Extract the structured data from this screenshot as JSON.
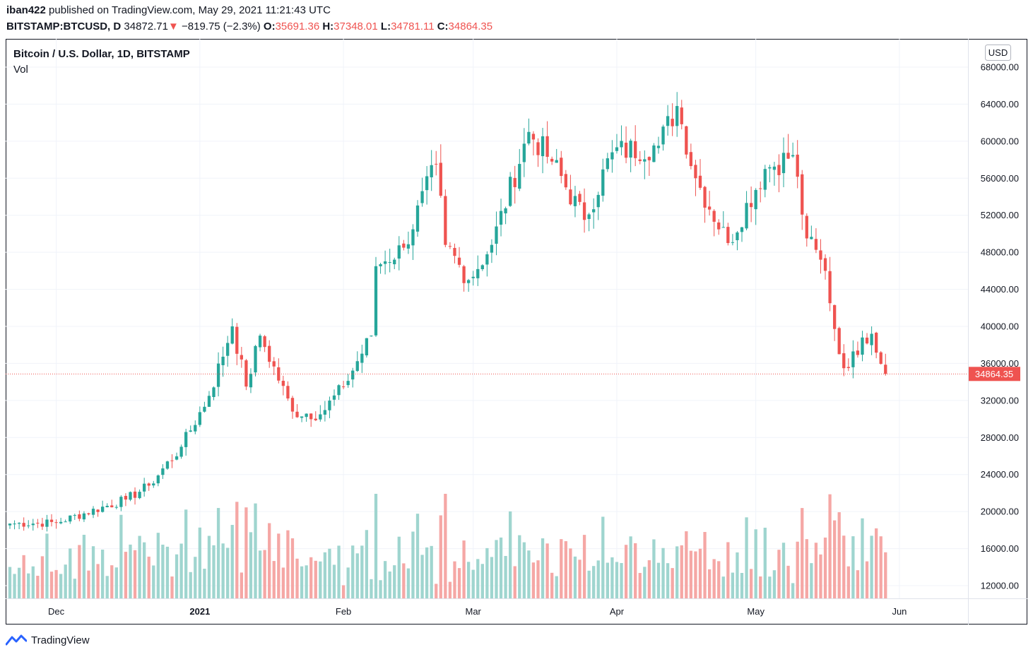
{
  "header": {
    "user": "iban422",
    "published_text": "published on TradingView.com, May 29, 2021 11:21:43 UTC",
    "symbol": "BITSTAMP:BTCUSD, D",
    "last": "34872.71",
    "change_arrow": "▼",
    "change": "−819.75 (−2.3%)",
    "o_label": "O:",
    "o": "35691.36",
    "h_label": "H:",
    "h": "37348.01",
    "l_label": "L:",
    "l": "34781.11",
    "c_label": "C:",
    "c": "34864.35"
  },
  "legend": {
    "series_title": "Bitcoin / U.S. Dollar, 1D, BITSTAMP",
    "volume_label": "Vol"
  },
  "currency_badge": "USD",
  "price_tag": "34864.35",
  "footer": {
    "brand": "TradingView"
  },
  "colors": {
    "up": "#26a69a",
    "down": "#ef5350",
    "up_vol": "#9fd5cf",
    "down_vol": "#f5a7a5"
  },
  "chart_data": {
    "type": "candlestick",
    "title": "Bitcoin / U.S. Dollar, 1D, BITSTAMP",
    "ylim": [
      11000,
      69000
    ],
    "y_ticks": [
      12000,
      16000,
      20000,
      24000,
      28000,
      32000,
      36000,
      40000,
      44000,
      48000,
      52000,
      56000,
      60000,
      64000,
      68000
    ],
    "x_tick_labels": [
      "Dec",
      "2021",
      "Feb",
      "Mar",
      "Apr",
      "May",
      "Jun"
    ],
    "current_price": 34864.35,
    "anchors": [
      {
        "date": "2020-11-21",
        "close": 18700
      },
      {
        "date": "2020-12-01",
        "close": 18800
      },
      {
        "date": "2020-12-16",
        "close": 21300
      },
      {
        "date": "2020-12-21",
        "close": 22800
      },
      {
        "date": "2020-12-28",
        "close": 27000
      },
      {
        "date": "2021-01-03",
        "close": 32500
      },
      {
        "date": "2021-01-08",
        "close": 40000
      },
      {
        "date": "2021-01-11",
        "close": 33500
      },
      {
        "date": "2021-01-14",
        "close": 39000
      },
      {
        "date": "2021-01-21",
        "close": 30800
      },
      {
        "date": "2021-01-27",
        "close": 30500
      },
      {
        "date": "2021-02-01",
        "close": 33500
      },
      {
        "date": "2021-02-07",
        "close": 39000
      },
      {
        "date": "2021-02-08",
        "close": 46500
      },
      {
        "date": "2021-02-14",
        "close": 48500
      },
      {
        "date": "2021-02-21",
        "close": 57500
      },
      {
        "date": "2021-02-23",
        "close": 48800
      },
      {
        "date": "2021-02-28",
        "close": 45000
      },
      {
        "date": "2021-03-05",
        "close": 48800
      },
      {
        "date": "2021-03-13",
        "close": 61000
      },
      {
        "date": "2021-03-18",
        "close": 57800
      },
      {
        "date": "2021-03-25",
        "close": 51500
      },
      {
        "date": "2021-03-31",
        "close": 58800
      },
      {
        "date": "2021-04-10",
        "close": 59500
      },
      {
        "date": "2021-04-14",
        "close": 63800
      },
      {
        "date": "2021-04-18",
        "close": 56000
      },
      {
        "date": "2021-04-25",
        "close": 49000
      },
      {
        "date": "2021-05-03",
        "close": 57000
      },
      {
        "date": "2021-05-09",
        "close": 58500
      },
      {
        "date": "2021-05-12",
        "close": 49500
      },
      {
        "date": "2021-05-16",
        "close": 46000
      },
      {
        "date": "2021-05-19",
        "close": 37000
      },
      {
        "date": "2021-05-21",
        "close": 35500
      },
      {
        "date": "2021-05-24",
        "close": 38800
      },
      {
        "date": "2021-05-26",
        "close": 39200
      },
      {
        "date": "2021-05-29",
        "close": 34864
      }
    ],
    "volume_note": "Vol pane shown in lower area with colored bars"
  }
}
